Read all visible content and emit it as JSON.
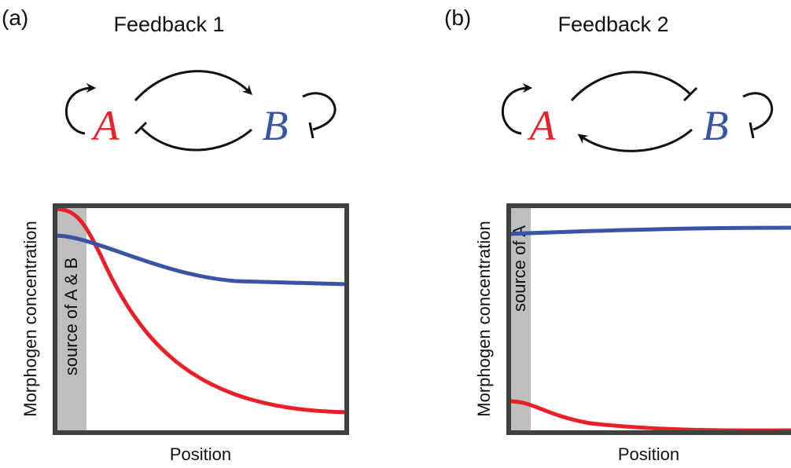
{
  "panels": [
    {
      "label": "(a)",
      "title": "Feedback 1",
      "node_a": "A",
      "node_b": "B",
      "source": "source of A & B",
      "y_label": "Morphogen concentration",
      "x_label": "Position"
    },
    {
      "label": "(b)",
      "title": "Feedback 2",
      "node_a": "A",
      "node_b": "B",
      "source": "source of A",
      "y_label": "Morphogen concentration",
      "x_label": "Position"
    }
  ]
}
